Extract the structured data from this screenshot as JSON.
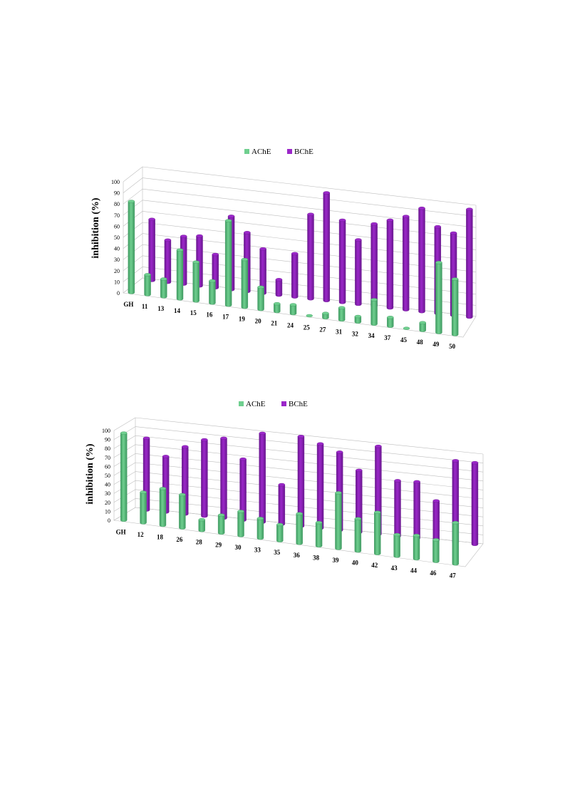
{
  "charts": [
    {
      "type": "bar",
      "title": "",
      "xlabel": "",
      "ylabel": "inhibition (%)",
      "ylim": [
        0,
        100
      ],
      "yticks": [
        "0",
        "10",
        "20",
        "30",
        "40",
        "50",
        "60",
        "70",
        "80",
        "90",
        "100"
      ],
      "categories": [
        "GH",
        "11",
        "13",
        "14",
        "15",
        "16",
        "17",
        "19",
        "20",
        "21",
        "24",
        "25",
        "27",
        "31",
        "32",
        "34",
        "37",
        "45",
        "48",
        "49",
        "50"
      ],
      "series": [
        {
          "name": "AChE",
          "color": "#6fcf8f",
          "values": [
            82,
            18,
            16,
            44,
            35,
            20,
            76,
            43,
            20,
            7,
            8,
            0,
            4,
            11,
            5,
            22,
            8,
            0,
            7,
            63,
            50
          ]
        },
        {
          "name": "BChE",
          "color": "#9b27c9",
          "values": [
            55,
            38,
            43,
            45,
            30,
            66,
            53,
            40,
            14,
            39,
            76,
            97,
            74,
            58,
            74,
            79,
            84,
            93,
            78,
            74,
            97
          ]
        }
      ]
    },
    {
      "type": "bar",
      "title": "",
      "xlabel": "",
      "ylabel": "inhibition (%)",
      "ylim": [
        0,
        100
      ],
      "yticks": [
        "0",
        "10",
        "20",
        "30",
        "40",
        "50",
        "60",
        "70",
        "80",
        "90",
        "100"
      ],
      "categories": [
        "GH",
        "12",
        "18",
        "26",
        "28",
        "29",
        "30",
        "33",
        "35",
        "36",
        "38",
        "39",
        "40",
        "42",
        "43",
        "44",
        "46",
        "47"
      ],
      "series": [
        {
          "name": "AChE",
          "color": "#6fcf8f",
          "values": [
            97,
            34,
            41,
            37,
            12,
            20,
            27,
            22,
            18,
            33,
            26,
            62,
            36,
            46,
            24,
            26,
            24,
            46
          ]
        },
        {
          "name": "BChE",
          "color": "#9b27c9",
          "values": [
            80,
            62,
            75,
            85,
            89,
            68,
            99,
            44,
            100,
            94,
            87,
            69,
            98,
            62,
            63,
            44,
            91,
            91
          ]
        }
      ]
    }
  ],
  "chart_data": [
    {
      "type": "bar",
      "ylabel": "inhibition (%)",
      "ylim": [
        0,
        100
      ],
      "categories": [
        "GH",
        "11",
        "13",
        "14",
        "15",
        "16",
        "17",
        "19",
        "20",
        "21",
        "24",
        "25",
        "27",
        "31",
        "32",
        "34",
        "37",
        "45",
        "48",
        "49",
        "50"
      ],
      "series": [
        {
          "name": "AChE",
          "values": [
            82,
            18,
            16,
            44,
            35,
            20,
            76,
            43,
            20,
            7,
            8,
            0,
            4,
            11,
            5,
            22,
            8,
            0,
            7,
            63,
            50
          ]
        },
        {
          "name": "BChE",
          "values": [
            55,
            38,
            43,
            45,
            30,
            66,
            53,
            40,
            14,
            39,
            76,
            97,
            74,
            58,
            74,
            79,
            84,
            93,
            78,
            74,
            97
          ]
        }
      ],
      "legend": "top-center",
      "grid": true
    },
    {
      "type": "bar",
      "ylabel": "inhibition (%)",
      "ylim": [
        0,
        100
      ],
      "categories": [
        "GH",
        "12",
        "18",
        "26",
        "28",
        "29",
        "30",
        "33",
        "35",
        "36",
        "38",
        "39",
        "40",
        "42",
        "43",
        "44",
        "46",
        "47"
      ],
      "series": [
        {
          "name": "AChE",
          "values": [
            97,
            34,
            41,
            37,
            12,
            20,
            27,
            22,
            18,
            33,
            26,
            62,
            36,
            46,
            24,
            26,
            24,
            46
          ]
        },
        {
          "name": "BChE",
          "values": [
            80,
            62,
            75,
            85,
            89,
            68,
            99,
            44,
            100,
            94,
            87,
            69,
            98,
            62,
            63,
            44,
            91,
            91
          ]
        }
      ],
      "legend": "top-center",
      "grid": true
    }
  ]
}
